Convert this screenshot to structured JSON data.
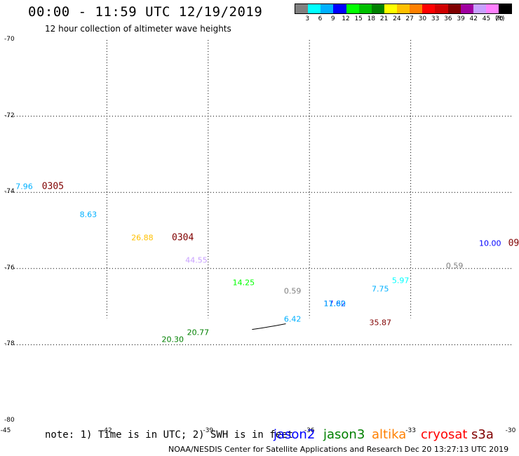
{
  "header": {
    "title": "00:00 - 11:59 UTC 12/19/2019",
    "subtitle": "12 hour collection of altimeter wave heights"
  },
  "colorbar": {
    "colors": [
      "#808080",
      "#00ffff",
      "#00b0ff",
      "#0000ff",
      "#00ff00",
      "#00c000",
      "#008000",
      "#ffff00",
      "#ffc000",
      "#ff8000",
      "#ff0000",
      "#d00000",
      "#800000",
      "#a000a0",
      "#c8a0ff",
      "#ff80ff",
      "#000000"
    ],
    "labels": [
      "3",
      "6",
      "9",
      "12",
      "15",
      "18",
      "21",
      "24",
      "27",
      "30",
      "33",
      "36",
      "39",
      "42",
      "45",
      "70"
    ],
    "unit": "(ft)"
  },
  "chart_data": {
    "type": "scatter",
    "title": "00:00 - 11:59 UTC 12/19/2019",
    "subtitle": "12 hour collection of altimeter wave heights",
    "lat_ticks": [
      "-70",
      "-72",
      "-74",
      "-76",
      "-78",
      "-80"
    ],
    "lon_ticks": [
      "-45",
      "-42",
      "-39",
      "-36",
      "-33",
      "-30"
    ],
    "xlim": [
      -45,
      -30
    ],
    "ylim": [
      -80,
      -70
    ],
    "grid": true,
    "wave_heights": [
      {
        "value": "7.96",
        "lon": -44.45,
        "lat": -73.85,
        "color": "#00b0ff"
      },
      {
        "value": "8.63",
        "lon": -42.55,
        "lat": -74.58,
        "color": "#00b0ff"
      },
      {
        "value": "26.88",
        "lon": -40.95,
        "lat": -75.19,
        "color": "#ffc000"
      },
      {
        "value": "44.55",
        "lon": -39.35,
        "lat": -75.78,
        "color": "#c8a0ff"
      },
      {
        "value": "14.25",
        "lon": -37.95,
        "lat": -76.37,
        "color": "#00ff00"
      },
      {
        "value": "0.59",
        "lon": -36.5,
        "lat": -76.6,
        "color": "#808080"
      },
      {
        "value": "6.42",
        "lon": -36.5,
        "lat": -77.33,
        "color": "#00b0ff"
      },
      {
        "value": "17.62",
        "lon": -35.25,
        "lat": -76.93,
        "color": "#0000ff"
      },
      {
        "value": "11.80",
        "lon": -35.25,
        "lat": -76.93,
        "color": "#00b0ff"
      },
      {
        "value": "7.75",
        "lon": -33.9,
        "lat": -76.53,
        "color": "#00b0ff"
      },
      {
        "value": "5.97",
        "lon": -33.3,
        "lat": -76.31,
        "color": "#00ffff"
      },
      {
        "value": "35.87",
        "lon": -33.9,
        "lat": -77.43,
        "color": "#800000"
      },
      {
        "value": "0.59",
        "lon": -31.7,
        "lat": -75.93,
        "color": "#808080"
      },
      {
        "value": "10.00",
        "lon": -30.65,
        "lat": -75.34,
        "color": "#0000ff"
      },
      {
        "value": "20.30",
        "lon": -40.05,
        "lat": -77.86,
        "color": "#008000"
      },
      {
        "value": "20.77",
        "lon": -39.3,
        "lat": -77.68,
        "color": "#008000"
      }
    ],
    "passes": [
      {
        "label": "0305",
        "lon": -43.6,
        "lat": -73.85,
        "color": "#800000"
      },
      {
        "label": "0304",
        "lon": -39.75,
        "lat": -75.19,
        "color": "#800000"
      },
      {
        "label": "09",
        "lon": -29.95,
        "lat": -75.34,
        "color": "#800000"
      }
    ],
    "coast": [
      [
        -37.7,
        -77.6
      ],
      [
        -37.4,
        -77.56
      ],
      [
        -37.0,
        -77.5
      ],
      [
        -36.7,
        -77.45
      ]
    ]
  },
  "footer": {
    "note": "note: 1) Time is in UTC; 2) SWH is in feet",
    "satellites": [
      {
        "name": "jason2",
        "color": "#0000ff"
      },
      {
        "name": "jason3",
        "color": "#008000"
      },
      {
        "name": "altika",
        "color": "#ff8000"
      },
      {
        "name": "cryosat",
        "color": "#ff0000"
      },
      {
        "name": "s3a",
        "color": "#800000"
      }
    ],
    "credit": "NOAA/NESDIS Center for Satellite Applications and Research      Dec 20 13:27:13 UTC 2019"
  }
}
